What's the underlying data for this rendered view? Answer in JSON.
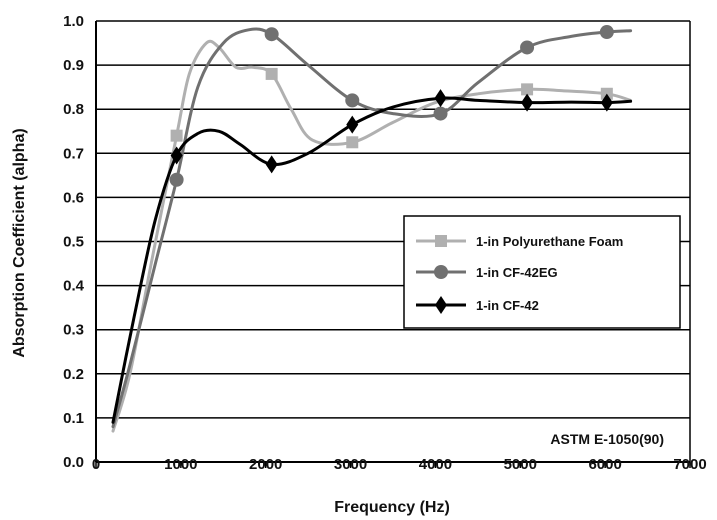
{
  "chart_data": {
    "type": "line",
    "title": "",
    "xlabel": "Frequency (Hz)",
    "ylabel": "Absorption Coefficient (alpha)",
    "annotation": "ASTM E-1050(90)",
    "xlim": [
      0,
      7000
    ],
    "ylim": [
      0.0,
      1.0
    ],
    "xticks": [
      0,
      1000,
      2000,
      3000,
      4000,
      5000,
      6000,
      7000
    ],
    "yticks": [
      0.0,
      0.1,
      0.2,
      0.3,
      0.4,
      0.5,
      0.6,
      0.7,
      0.8,
      0.9,
      1.0
    ],
    "xtick_labels": [
      "0",
      "1000",
      "2000",
      "3000",
      "4000",
      "5000",
      "6000",
      "7000"
    ],
    "ytick_labels": [
      "0.0",
      "0.1",
      "0.2",
      "0.3",
      "0.4",
      "0.5",
      "0.6",
      "0.7",
      "0.8",
      "0.9",
      "1.0"
    ],
    "grid": "horizontal",
    "legend_position": "center-right",
    "series": [
      {
        "name": "1-in Polyurethane Foam",
        "color": "#b0b0b0",
        "marker": "square",
        "markers": [
          [
            950,
            0.74
          ],
          [
            2070,
            0.88
          ],
          [
            3020,
            0.725
          ],
          [
            5080,
            0.845
          ],
          [
            6020,
            0.835
          ]
        ],
        "curve": [
          [
            200,
            0.07
          ],
          [
            400,
            0.2
          ],
          [
            650,
            0.45
          ],
          [
            950,
            0.74
          ],
          [
            1100,
            0.88
          ],
          [
            1300,
            0.95
          ],
          [
            1450,
            0.94
          ],
          [
            1650,
            0.895
          ],
          [
            1850,
            0.895
          ],
          [
            2070,
            0.88
          ],
          [
            2300,
            0.8
          ],
          [
            2550,
            0.73
          ],
          [
            3020,
            0.725
          ],
          [
            3500,
            0.77
          ],
          [
            4000,
            0.815
          ],
          [
            4500,
            0.835
          ],
          [
            5080,
            0.845
          ],
          [
            5500,
            0.842
          ],
          [
            6020,
            0.835
          ],
          [
            6300,
            0.82
          ]
        ]
      },
      {
        "name": "1-in CF-42EG",
        "color": "#707070",
        "marker": "circle",
        "markers": [
          [
            950,
            0.64
          ],
          [
            2070,
            0.97
          ],
          [
            3020,
            0.82
          ],
          [
            4060,
            0.79
          ],
          [
            5080,
            0.94
          ],
          [
            6020,
            0.975
          ]
        ],
        "curve": [
          [
            200,
            0.08
          ],
          [
            400,
            0.22
          ],
          [
            700,
            0.45
          ],
          [
            950,
            0.64
          ],
          [
            1200,
            0.85
          ],
          [
            1500,
            0.95
          ],
          [
            1800,
            0.98
          ],
          [
            2070,
            0.97
          ],
          [
            2500,
            0.9
          ],
          [
            3020,
            0.82
          ],
          [
            3500,
            0.79
          ],
          [
            4060,
            0.79
          ],
          [
            4500,
            0.86
          ],
          [
            5080,
            0.94
          ],
          [
            5600,
            0.965
          ],
          [
            6020,
            0.975
          ],
          [
            6300,
            0.978
          ]
        ]
      },
      {
        "name": "1-in CF-42",
        "color": "#000000",
        "marker": "diamond",
        "markers": [
          [
            950,
            0.695
          ],
          [
            2070,
            0.675
          ],
          [
            3020,
            0.765
          ],
          [
            4060,
            0.825
          ],
          [
            5080,
            0.815
          ],
          [
            6020,
            0.815
          ]
        ],
        "curve": [
          [
            200,
            0.09
          ],
          [
            450,
            0.33
          ],
          [
            700,
            0.55
          ],
          [
            950,
            0.695
          ],
          [
            1200,
            0.745
          ],
          [
            1450,
            0.75
          ],
          [
            1700,
            0.72
          ],
          [
            2070,
            0.675
          ],
          [
            2500,
            0.7
          ],
          [
            3020,
            0.765
          ],
          [
            3500,
            0.805
          ],
          [
            4060,
            0.825
          ],
          [
            4500,
            0.82
          ],
          [
            5080,
            0.815
          ],
          [
            5600,
            0.816
          ],
          [
            6020,
            0.815
          ],
          [
            6300,
            0.818
          ]
        ]
      }
    ]
  }
}
